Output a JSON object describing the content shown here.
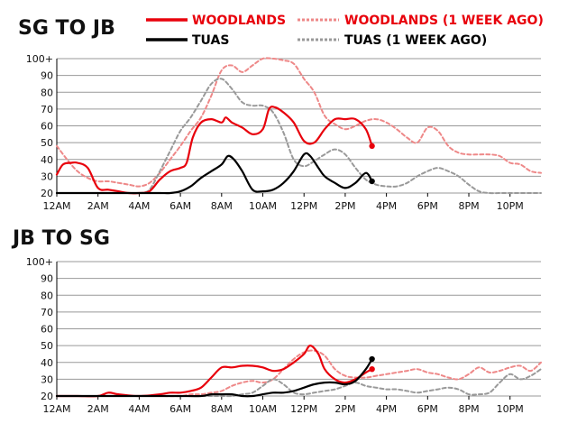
{
  "colors": {
    "woodlands": "#e8000b",
    "tuas": "#000000",
    "woodlands_prev": "#ee8888",
    "tuas_prev": "#999999",
    "grid": "#999999"
  },
  "legend": {
    "woodlands": "WOODLANDS",
    "woodlands_prev": "WOODLANDS (1 WEEK AGO)",
    "tuas": "TUAS",
    "tuas_prev": "TUAS (1 WEEK AGO)"
  },
  "chart_data": [
    {
      "type": "line",
      "title": "SG TO JB",
      "xlim": [
        0,
        23.5
      ],
      "ylim": [
        20,
        100
      ],
      "x_ticks": [
        0,
        2,
        4,
        6,
        8,
        10,
        12,
        14,
        16,
        18,
        20,
        22
      ],
      "x_tick_labels": [
        "12AM",
        "2AM",
        "4AM",
        "6AM",
        "8AM",
        "10AM",
        "12PM",
        "2PM",
        "4PM",
        "6PM",
        "8PM",
        "10PM"
      ],
      "y_ticks": [
        20,
        30,
        40,
        50,
        60,
        70,
        80,
        90,
        100
      ],
      "y_tick_labels": [
        "20",
        "30",
        "40",
        "50",
        "60",
        "70",
        "80",
        "90",
        "100+"
      ],
      "grid": true,
      "series": [
        {
          "name": "WOODLANDS (1 WEEK AGO)",
          "key": "woodlands_prev",
          "style": "dashed",
          "endpoint": false,
          "x": [
            0,
            0.5,
            1,
            1.5,
            2,
            2.5,
            3,
            3.5,
            4,
            4.5,
            5,
            5.5,
            6,
            6.5,
            7,
            7.5,
            8,
            8.5,
            9,
            9.5,
            10,
            10.5,
            11,
            11.5,
            12,
            12.5,
            13,
            13.5,
            14,
            14.5,
            15,
            15.5,
            16,
            16.5,
            17,
            17.5,
            18,
            18.5,
            19,
            19.5,
            20,
            20.5,
            21,
            21.5,
            22,
            22.5,
            23,
            23.5
          ],
          "y": [
            48,
            40,
            33,
            29,
            27,
            27,
            26,
            25,
            24,
            26,
            32,
            40,
            48,
            57,
            65,
            78,
            93,
            96,
            92,
            96,
            100,
            100,
            99,
            97,
            88,
            80,
            66,
            61,
            58,
            60,
            63,
            64,
            62,
            58,
            53,
            50,
            59,
            57,
            48,
            44,
            43,
            43,
            43,
            42,
            38,
            37,
            33,
            32
          ]
        },
        {
          "name": "TUAS (1 WEEK AGO)",
          "key": "tuas_prev",
          "style": "dashed",
          "endpoint": false,
          "x": [
            0,
            0.5,
            1,
            1.5,
            2,
            2.5,
            3,
            3.5,
            4,
            4.5,
            5,
            5.5,
            6,
            6.5,
            7,
            7.5,
            8,
            8.5,
            9,
            9.5,
            10,
            10.5,
            11,
            11.5,
            12,
            12.5,
            13,
            13.5,
            14,
            14.5,
            15,
            15.5,
            16,
            16.5,
            17,
            17.5,
            18,
            18.5,
            19,
            19.5,
            20,
            20.5,
            21,
            21.5,
            22,
            22.5,
            23,
            23.5
          ],
          "y": [
            20,
            20,
            20,
            20,
            20,
            20,
            20,
            20,
            20,
            22,
            33,
            45,
            57,
            65,
            75,
            85,
            88,
            82,
            74,
            72,
            72,
            68,
            56,
            40,
            36,
            39,
            43,
            46,
            43,
            35,
            28,
            25,
            24,
            24,
            26,
            30,
            33,
            35,
            33,
            30,
            25,
            21,
            20,
            20,
            20,
            20,
            20,
            20
          ]
        },
        {
          "name": "WOODLANDS",
          "key": "woodlands",
          "style": "solid",
          "endpoint": true,
          "x": [
            0,
            0.3,
            0.7,
            1,
            1.5,
            2,
            2.5,
            3,
            3.5,
            4,
            4.5,
            5,
            5.5,
            6,
            6.3,
            6.6,
            7,
            7.5,
            8,
            8.2,
            8.5,
            9,
            9.5,
            10,
            10.3,
            10.6,
            11,
            11.5,
            12,
            12.5,
            13,
            13.5,
            14,
            14.5,
            15,
            15.3
          ],
          "y": [
            31,
            37,
            38,
            38,
            35,
            23,
            22,
            21,
            20,
            20,
            21,
            28,
            33,
            35,
            38,
            53,
            62,
            64,
            62,
            65,
            62,
            59,
            55,
            58,
            70,
            71,
            68,
            62,
            51,
            50,
            58,
            64,
            64,
            64,
            58,
            48
          ]
        },
        {
          "name": "TUAS",
          "key": "tuas",
          "style": "solid",
          "endpoint": true,
          "x": [
            0,
            1,
            2,
            3,
            4,
            5,
            5.5,
            6,
            6.5,
            7,
            7.5,
            8,
            8.3,
            8.6,
            9,
            9.5,
            10,
            10.5,
            11,
            11.5,
            12,
            12.3,
            12.7,
            13,
            13.5,
            14,
            14.5,
            15,
            15.3
          ],
          "y": [
            20,
            20,
            20,
            20,
            20,
            20,
            20,
            21,
            24,
            29,
            33,
            37,
            42,
            40,
            33,
            22,
            21,
            22,
            26,
            33,
            43,
            42,
            35,
            30,
            26,
            23,
            26,
            32,
            27
          ]
        }
      ]
    },
    {
      "type": "line",
      "title": "JB TO SG",
      "xlim": [
        0,
        23.5
      ],
      "ylim": [
        20,
        100
      ],
      "x_ticks": [
        0,
        2,
        4,
        6,
        8,
        10,
        12,
        14,
        16,
        18,
        20,
        22
      ],
      "x_tick_labels": [
        "12AM",
        "2AM",
        "4AM",
        "6AM",
        "8AM",
        "10AM",
        "12PM",
        "2PM",
        "4PM",
        "6PM",
        "8PM",
        "10PM"
      ],
      "y_ticks": [
        20,
        30,
        40,
        50,
        60,
        70,
        80,
        90,
        100
      ],
      "y_tick_labels": [
        "20",
        "30",
        "40",
        "50",
        "60",
        "70",
        "80",
        "90",
        "100+"
      ],
      "grid": true,
      "series": [
        {
          "name": "WOODLANDS (1 WEEK AGO)",
          "key": "woodlands_prev",
          "style": "dashed",
          "endpoint": false,
          "x": [
            0,
            1,
            2,
            3,
            4,
            5,
            6,
            6.5,
            7,
            7.5,
            8,
            8.5,
            9,
            9.5,
            10,
            10.5,
            11,
            11.5,
            12,
            12.5,
            13,
            13.5,
            14,
            14.5,
            15,
            15.5,
            16,
            16.5,
            17,
            17.5,
            18,
            18.5,
            19,
            19.5,
            20,
            20.5,
            21,
            21.5,
            22,
            22.5,
            23,
            23.5
          ],
          "y": [
            20,
            20,
            20,
            20,
            20,
            20,
            20,
            21,
            21,
            22,
            23,
            26,
            28,
            29,
            28,
            30,
            36,
            42,
            46,
            47,
            44,
            36,
            32,
            31,
            31,
            32,
            33,
            34,
            35,
            36,
            34,
            33,
            31,
            30,
            33,
            37,
            34,
            35,
            37,
            38,
            35,
            40
          ]
        },
        {
          "name": "TUAS (1 WEEK AGO)",
          "key": "tuas_prev",
          "style": "dashed",
          "endpoint": false,
          "x": [
            0,
            1,
            2,
            3,
            4,
            5,
            6,
            6.5,
            7,
            7.5,
            8,
            8.5,
            9,
            9.5,
            10,
            10.5,
            11,
            11.5,
            12,
            12.5,
            13,
            13.5,
            14,
            14.5,
            15,
            15.5,
            16,
            16.5,
            17,
            17.5,
            18,
            18.5,
            19,
            19.5,
            20,
            20.5,
            21,
            21.5,
            22,
            22.5,
            23,
            23.5
          ],
          "y": [
            20,
            20,
            20,
            20,
            20,
            20,
            20,
            20,
            20,
            20,
            20,
            20,
            21,
            22,
            26,
            30,
            27,
            22,
            21,
            22,
            23,
            24,
            26,
            28,
            26,
            25,
            24,
            24,
            23,
            22,
            23,
            24,
            25,
            24,
            21,
            21,
            22,
            28,
            33,
            30,
            32,
            36
          ]
        },
        {
          "name": "WOODLANDS",
          "key": "woodlands",
          "style": "solid",
          "endpoint": true,
          "x": [
            0,
            1,
            2,
            2.5,
            3,
            4,
            5,
            5.5,
            6,
            6.5,
            7,
            7.5,
            8,
            8.5,
            9,
            9.5,
            10,
            10.5,
            11,
            11.5,
            12,
            12.3,
            12.7,
            13,
            13.5,
            14,
            14.5,
            15,
            15.3
          ],
          "y": [
            20,
            20,
            20,
            22,
            21,
            20,
            21,
            22,
            22,
            23,
            25,
            31,
            37,
            37,
            38,
            38,
            37,
            35,
            36,
            40,
            45,
            50,
            45,
            36,
            30,
            28,
            30,
            34,
            36
          ]
        },
        {
          "name": "TUAS",
          "key": "tuas",
          "style": "solid",
          "endpoint": true,
          "x": [
            0,
            1,
            2,
            3,
            4,
            5,
            6,
            7,
            7.5,
            8,
            8.5,
            9,
            9.5,
            10,
            10.5,
            11,
            11.5,
            12,
            12.5,
            13,
            13.5,
            14,
            14.5,
            15,
            15.3
          ],
          "y": [
            20,
            20,
            20,
            20,
            20,
            20,
            20,
            20,
            21,
            21,
            21,
            20,
            20,
            21,
            22,
            22,
            23,
            25,
            27,
            28,
            28,
            27,
            29,
            36,
            42
          ]
        }
      ]
    }
  ]
}
